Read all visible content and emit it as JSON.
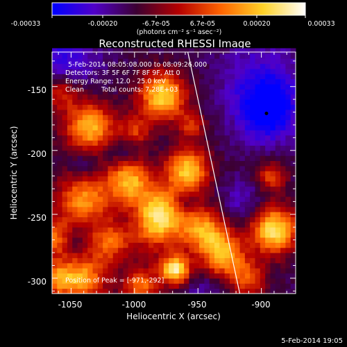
{
  "colorbar": {
    "tick_labels": [
      "-0.00033",
      "-0.00020",
      "-6.7e-05",
      "6.7e-05",
      "0.00020",
      "0.00033"
    ],
    "range": [
      -0.00033,
      0.00033
    ],
    "unit_label": "(photons cm⁻² s⁻¹ asec⁻²)",
    "colormap": [
      "#0000ff",
      "#5000c8",
      "#3c0032",
      "#b40000",
      "#ff6400",
      "#ffd228",
      "#ffffff"
    ]
  },
  "title": "Reconstructed RHESSI Image",
  "annotations": {
    "time_range": "5-Feb-2014 08:05:08.000 to 08:09:26.000",
    "detectors": "Detectors: 3F 5F 6F 7F 8F 9F, Att 0",
    "energy": "Energy Range: 12.0 - 25.0 keV",
    "method": "Clean",
    "counts": "Total counts: 7.28E+03",
    "peak": "Position of Peak = [-971,-292]"
  },
  "footer": {
    "timestamp": "5-Feb-2014 19:05"
  },
  "chart_data": {
    "type": "heatmap",
    "title": "Reconstructed RHESSI Image",
    "xlabel": "Heliocentric X (arcsec)",
    "ylabel": "Heliocentric Y (arcsec)",
    "xlim": [
      -1065,
      -873
    ],
    "ylim": [
      -312,
      -123
    ],
    "xticks": [
      -1050,
      -1000,
      -950,
      -900
    ],
    "yticks": [
      -150,
      -200,
      -250,
      -300
    ],
    "peak_position": [
      -971,
      -292
    ],
    "limb_line": {
      "x": [
        -958,
        -917
      ],
      "y": [
        -123,
        -312
      ]
    },
    "min_marker": [
      -896,
      -171
    ],
    "grid": false,
    "grid_step_arcsec": 4,
    "intensity_blobs": [
      {
        "x": -978,
        "y": -157,
        "sigma": 13,
        "amp": 0.9
      },
      {
        "x": -1035,
        "y": -182,
        "sigma": 14,
        "amp": 0.8
      },
      {
        "x": -1058,
        "y": -155,
        "sigma": 10,
        "amp": 0.45
      },
      {
        "x": -958,
        "y": -215,
        "sigma": 12,
        "amp": 0.85
      },
      {
        "x": -1005,
        "y": -222,
        "sigma": 12,
        "amp": 0.75
      },
      {
        "x": -982,
        "y": -252,
        "sigma": 16,
        "amp": 1.0
      },
      {
        "x": -1040,
        "y": -238,
        "sigma": 15,
        "amp": 0.7
      },
      {
        "x": -1062,
        "y": -268,
        "sigma": 10,
        "amp": 0.6
      },
      {
        "x": -1020,
        "y": -272,
        "sigma": 11,
        "amp": 0.55
      },
      {
        "x": -945,
        "y": -262,
        "sigma": 12,
        "amp": 0.7
      },
      {
        "x": -930,
        "y": -282,
        "sigma": 12,
        "amp": 0.75
      },
      {
        "x": -890,
        "y": -262,
        "sigma": 13,
        "amp": 0.95
      },
      {
        "x": -892,
        "y": -220,
        "sigma": 8,
        "amp": 0.5
      },
      {
        "x": -910,
        "y": -300,
        "sigma": 10,
        "amp": 0.5
      },
      {
        "x": -968,
        "y": -293,
        "sigma": 8,
        "amp": 1.0
      },
      {
        "x": -1040,
        "y": -300,
        "sigma": 13,
        "amp": 0.7
      },
      {
        "x": -995,
        "y": -305,
        "sigma": 10,
        "amp": 0.6
      },
      {
        "x": -1062,
        "y": -300,
        "sigma": 10,
        "amp": 0.6
      },
      {
        "x": -1000,
        "y": -185,
        "sigma": 9,
        "amp": 0.45
      },
      {
        "x": -955,
        "y": -180,
        "sigma": 8,
        "amp": 0.4
      }
    ],
    "negative_blobs": [
      {
        "x": -895,
        "y": -170,
        "sigma": 16,
        "amp": 1.0
      },
      {
        "x": -900,
        "y": -145,
        "sigma": 22,
        "amp": 0.55
      },
      {
        "x": -1055,
        "y": -128,
        "sigma": 18,
        "amp": 0.6
      },
      {
        "x": -1040,
        "y": -210,
        "sigma": 9,
        "amp": 0.4
      },
      {
        "x": -1010,
        "y": -200,
        "sigma": 10,
        "amp": 0.45
      },
      {
        "x": -915,
        "y": -240,
        "sigma": 12,
        "amp": 0.4
      },
      {
        "x": -1000,
        "y": -252,
        "sigma": 8,
        "amp": 0.35
      },
      {
        "x": -960,
        "y": -240,
        "sigma": 6,
        "amp": 0.4
      },
      {
        "x": -1050,
        "y": -268,
        "sigma": 7,
        "amp": 0.4
      },
      {
        "x": -945,
        "y": -310,
        "sigma": 10,
        "amp": 0.3
      }
    ]
  }
}
